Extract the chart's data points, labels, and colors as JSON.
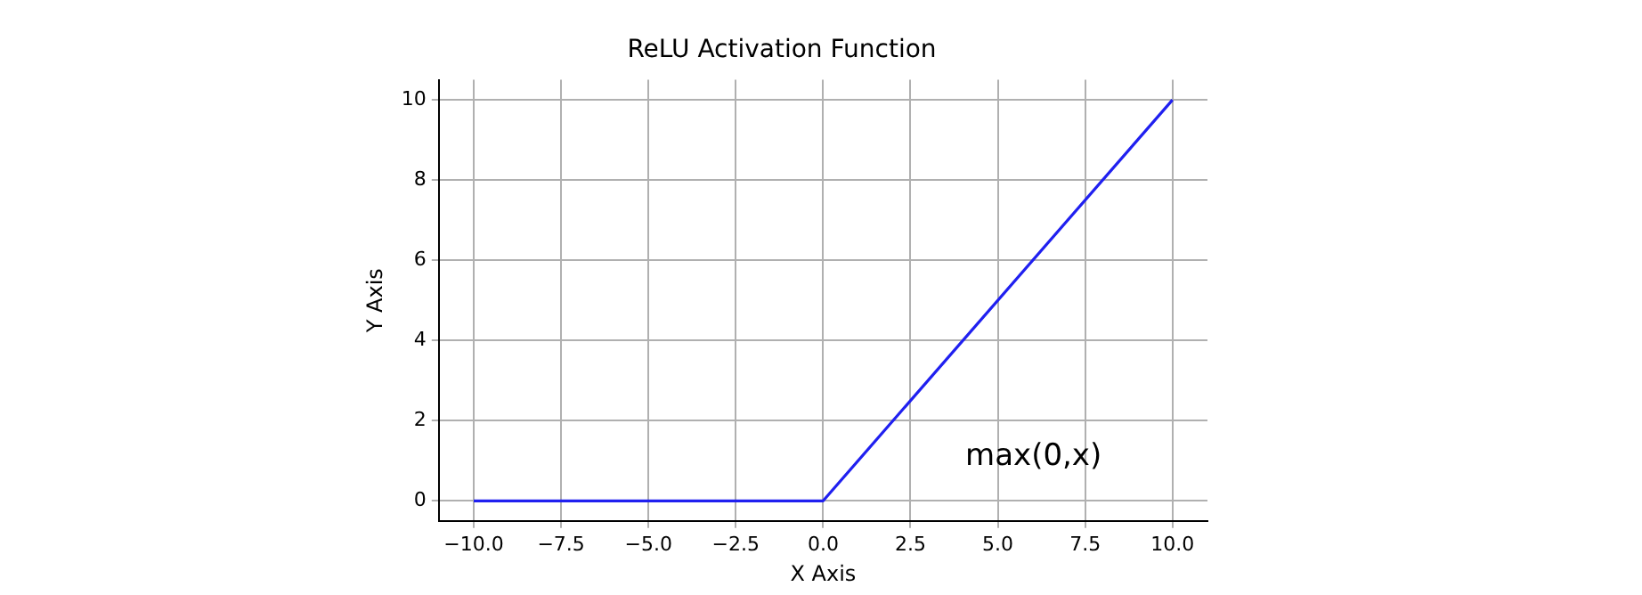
{
  "chart_data": {
    "type": "line",
    "title": "ReLU Activation Function",
    "xlabel": "X Axis",
    "ylabel": "Y Axis",
    "x": [
      -10,
      0,
      10
    ],
    "series": [
      {
        "color": "#2020f0",
        "values": [
          0,
          0,
          10
        ]
      }
    ],
    "xlim": [
      -11,
      11
    ],
    "ylim": [
      -0.5,
      10.5
    ],
    "xticks": [
      {
        "value": -10,
        "label": "−10.0"
      },
      {
        "value": -7.5,
        "label": "−7.5"
      },
      {
        "value": -5,
        "label": "−5.0"
      },
      {
        "value": -2.5,
        "label": "−2.5"
      },
      {
        "value": 0,
        "label": "0.0"
      },
      {
        "value": 2.5,
        "label": "2.5"
      },
      {
        "value": 5,
        "label": "5.0"
      },
      {
        "value": 7.5,
        "label": "7.5"
      },
      {
        "value": 10,
        "label": "10.0"
      }
    ],
    "yticks": [
      0,
      2,
      4,
      6,
      8,
      10
    ],
    "grid": true,
    "annotations": [
      "max(0,x)"
    ]
  }
}
